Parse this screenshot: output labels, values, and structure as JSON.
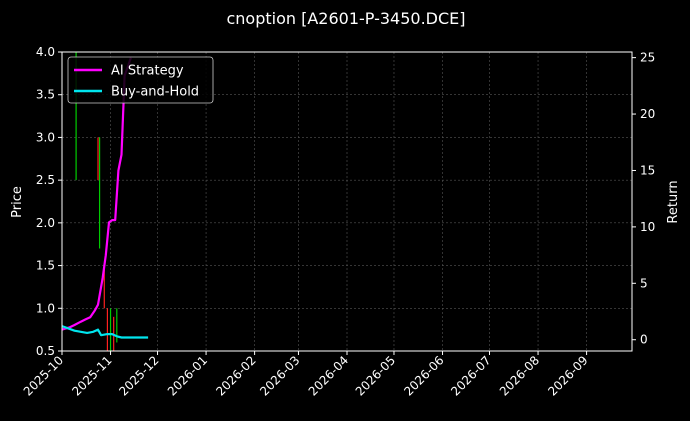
{
  "chart_data": {
    "type": "line",
    "title": "cnoption [A2601-P-3450.DCE]",
    "ylabel_left": "Price",
    "ylabel_right": "Return",
    "ylim_left": [
      0.5,
      4.0
    ],
    "ylim_right": [
      -1,
      25.5
    ],
    "yticks_left": [
      "0.5",
      "1.0",
      "1.5",
      "2.0",
      "2.5",
      "3.0",
      "3.5",
      "4.0"
    ],
    "yticks_right": [
      "0",
      "5",
      "10",
      "15",
      "20",
      "25"
    ],
    "xlim": [
      "2025-10-01",
      "2026-09-30"
    ],
    "xticks": [
      "2025-10",
      "2025-11",
      "2025-12",
      "2026-01",
      "2026-02",
      "2026-03",
      "2026-04",
      "2026-05",
      "2026-06",
      "2026-07",
      "2026-08",
      "2026-09"
    ],
    "grid": true,
    "legend_position": "top-left",
    "series": [
      {
        "name": "AI Strategy",
        "axis": "right",
        "color": "#ff00ff",
        "points": [
          [
            "2025-10-01",
            0.9
          ],
          [
            "2025-10-06",
            1.1
          ],
          [
            "2025-10-09",
            1.3
          ],
          [
            "2025-10-13",
            1.6
          ],
          [
            "2025-10-16",
            1.8
          ],
          [
            "2025-10-19",
            2.0
          ],
          [
            "2025-10-22",
            2.6
          ],
          [
            "2025-10-24",
            3.1
          ],
          [
            "2025-10-27",
            5.5
          ],
          [
            "2025-10-29",
            7.5
          ],
          [
            "2025-10-31",
            10.4
          ],
          [
            "2025-11-02",
            10.6
          ],
          [
            "2025-11-04",
            10.6
          ],
          [
            "2025-11-06",
            15.0
          ],
          [
            "2025-11-08",
            16.4
          ],
          [
            "2025-11-10",
            23.4
          ],
          [
            "2025-11-12",
            24.2
          ],
          [
            "2025-11-14",
            25.0
          ]
        ]
      },
      {
        "name": "Buy-and-Hold",
        "axis": "right",
        "color": "#00e5ee",
        "points": [
          [
            "2025-10-01",
            1.2
          ],
          [
            "2025-10-05",
            1.0
          ],
          [
            "2025-10-09",
            0.8
          ],
          [
            "2025-10-13",
            0.7
          ],
          [
            "2025-10-17",
            0.6
          ],
          [
            "2025-10-21",
            0.7
          ],
          [
            "2025-10-24",
            0.9
          ],
          [
            "2025-10-26",
            0.4
          ],
          [
            "2025-10-30",
            0.5
          ],
          [
            "2025-11-02",
            0.5
          ],
          [
            "2025-11-05",
            0.3
          ],
          [
            "2025-11-08",
            0.2
          ],
          [
            "2025-11-12",
            0.2
          ],
          [
            "2025-11-16",
            0.2
          ],
          [
            "2025-11-20",
            0.2
          ],
          [
            "2025-11-25",
            0.2
          ]
        ]
      }
    ],
    "candles": [
      {
        "date": "2025-10-10",
        "low": 2.5,
        "high": 4.0,
        "color": "#00cc00"
      },
      {
        "date": "2025-10-24",
        "low": 2.5,
        "high": 3.0,
        "color": "#ff2020"
      },
      {
        "date": "2025-10-25",
        "low": 1.7,
        "high": 3.0,
        "color": "#00cc00"
      },
      {
        "date": "2025-10-28",
        "low": 1.0,
        "high": 1.5,
        "color": "#ff2020"
      },
      {
        "date": "2025-10-30",
        "low": 0.5,
        "high": 1.0,
        "color": "#ff2020"
      },
      {
        "date": "2025-11-01",
        "low": 0.5,
        "high": 1.0,
        "color": "#00cc00"
      },
      {
        "date": "2025-11-03",
        "low": 0.5,
        "high": 0.9,
        "color": "#ff2020"
      },
      {
        "date": "2025-11-05",
        "low": 0.6,
        "high": 1.0,
        "color": "#00cc00"
      }
    ]
  }
}
